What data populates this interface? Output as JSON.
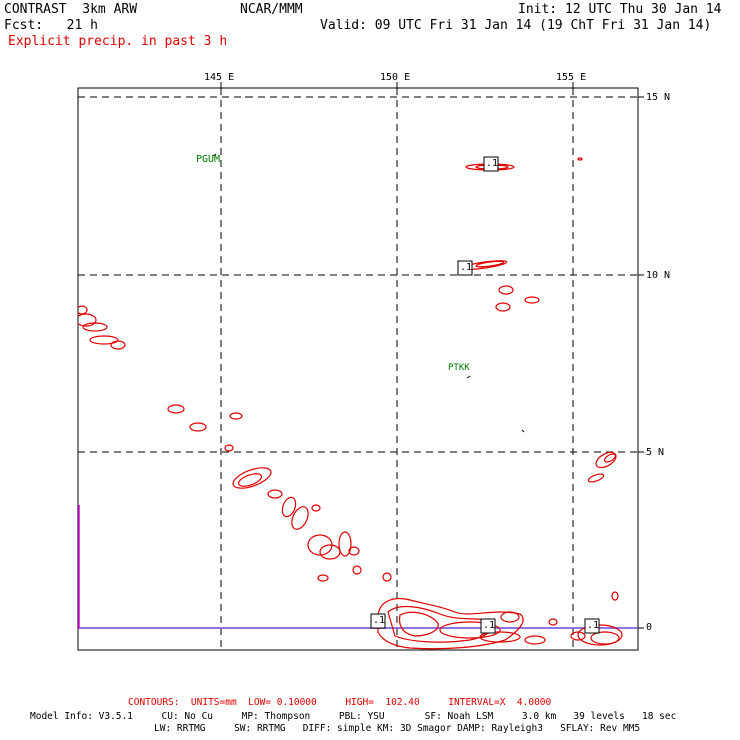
{
  "header": {
    "model": "CONTRAST  3km ARW",
    "center": "NCAR/MMM",
    "init": "Init: 12 UTC Thu 30 Jan 14",
    "fcst": "Fcst:   21 h",
    "valid": "Valid: 09 UTC Fri 31 Jan 14 (19 ChT Fri 31 Jan 14)",
    "field": "Explicit precip. in past 3 h"
  },
  "map": {
    "lon_labels": [
      "145 E",
      "150 E",
      "155 E"
    ],
    "lat_labels": [
      "15 N",
      "10 N",
      "5 N",
      "0"
    ],
    "stations": [
      "PGUM",
      "PTKK"
    ],
    "contour_labels": [
      ".1",
      ".1",
      ".1",
      ".1",
      ".1"
    ],
    "contour_color": "#e00000",
    "boundary_color": "#e000e0",
    "grid": "dashed"
  },
  "footer": {
    "contours": "CONTOURS:  UNITS=mm  LOW= 0.10000     HIGH=  102.40     INTERVAL=X  4.0000",
    "model_info_1": "Model Info: V3.5.1     CU: No Cu     MP: Thompson     PBL: YSU       SF: Noah LSM     3.0 km   39 levels   18 sec",
    "model_info_2": "LW: RRTMG     SW: RRTMG   DIFF: simple KM: 3D Smagor DAMP: Rayleigh3   SFLAY: Rev MM5"
  }
}
